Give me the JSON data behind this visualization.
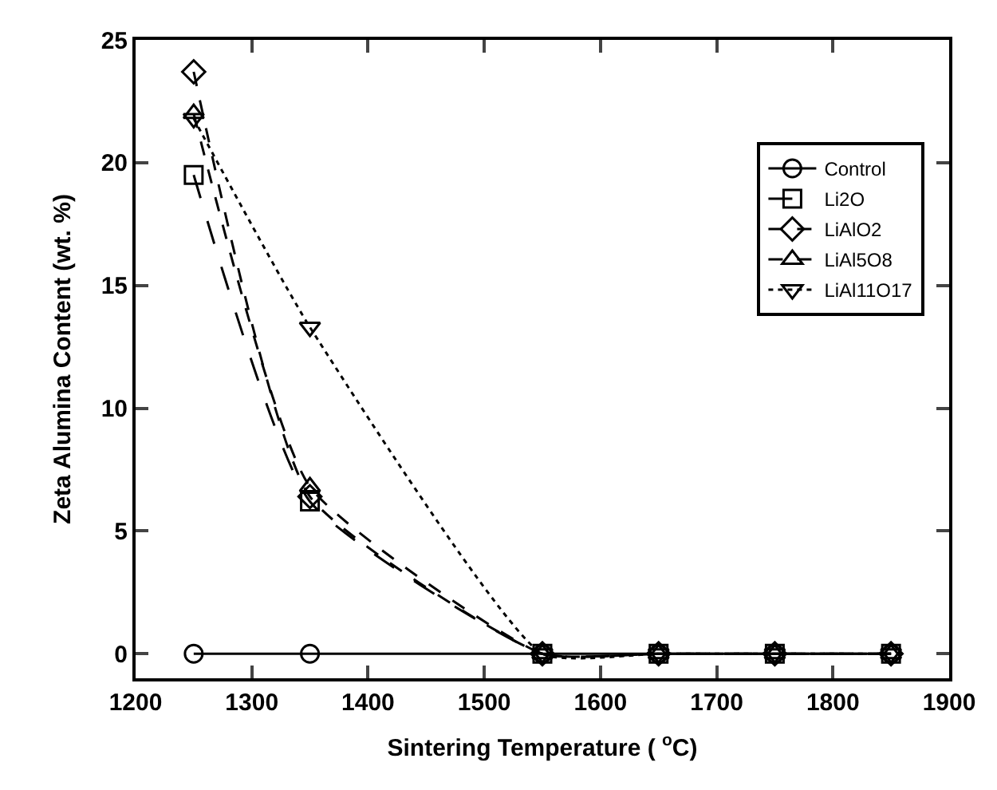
{
  "chart_data": {
    "type": "line",
    "xlabel": "Sintering Temperature ( $^{o}$C)",
    "ylabel": "Zeta Alumina Content (wt. %)",
    "x": [
      1250,
      1350,
      1550,
      1650,
      1750,
      1850
    ],
    "xlim": [
      1200,
      1900
    ],
    "xticks": [
      1200,
      1300,
      1400,
      1500,
      1600,
      1700,
      1800,
      1900
    ],
    "ylim": [
      -1,
      25
    ],
    "yticks": [
      0,
      5,
      10,
      15,
      20,
      25
    ],
    "legend": "top right",
    "series": [
      {
        "name": "Control",
        "color": "#000000",
        "marker": "circle",
        "line_style": "solid",
        "values": [
          0,
          0,
          0,
          0,
          0,
          0
        ]
      },
      {
        "name": "Li2O",
        "color": "#000000",
        "marker": "square",
        "line_style": "longdash",
        "values": [
          19.5,
          6.2,
          0,
          0,
          0,
          0
        ]
      },
      {
        "name": "LiAlO2",
        "color": "#000000",
        "marker": "diamond",
        "line_style": "dashed",
        "values": [
          23.7,
          6.4,
          0,
          0,
          0,
          0
        ]
      },
      {
        "name": "LiAl5O8",
        "color": "#000000",
        "marker": "triangle",
        "line_style": "dashed",
        "values": [
          22,
          6.8,
          0,
          0,
          0,
          0
        ]
      },
      {
        "name": "LiAl11O17",
        "color": "#000000",
        "marker": "triangle-down",
        "line_style": "dotted",
        "values": [
          21.8,
          13.3,
          0,
          0,
          0,
          0
        ]
      }
    ]
  }
}
